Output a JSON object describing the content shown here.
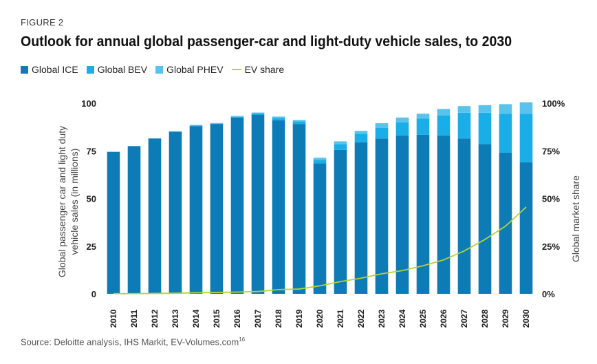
{
  "figure_label": "FIGURE 2",
  "title": "Outlook for annual global passenger-car and light-duty vehicle sales, to 2030",
  "source": "Source: Deloitte analysis, IHS Markit, EV-Volumes.com",
  "source_ref": "16",
  "colors": {
    "ice": "#0d7bb5",
    "bev": "#19aee8",
    "phev": "#59c3ec",
    "ev_share": "#b5d334"
  },
  "chart_data": {
    "type": "bar",
    "stacked": true,
    "categories": [
      "2010",
      "2011",
      "2012",
      "2013",
      "2014",
      "2015",
      "2016",
      "2017",
      "2018",
      "2019",
      "2020",
      "2021",
      "2022",
      "2023",
      "2024",
      "2025",
      "2026",
      "2027",
      "2028",
      "2029",
      "2030"
    ],
    "series": [
      {
        "name": "Global ICE",
        "values": [
          74.5,
          77.5,
          81.5,
          85,
          88,
          89,
          92.5,
          94,
          91,
          89,
          68.5,
          75.5,
          79.5,
          81.5,
          83,
          83.5,
          83,
          81.5,
          78.5,
          74,
          69
        ]
      },
      {
        "name": "Global BEV",
        "values": [
          0,
          0,
          0,
          0.1,
          0.3,
          0.3,
          0.4,
          0.6,
          1.2,
          1.5,
          1.8,
          3,
          4.5,
          5.5,
          7,
          8.5,
          10.5,
          13.5,
          16.5,
          20.5,
          25.5
        ]
      },
      {
        "name": "Global PHEV",
        "values": [
          0,
          0,
          0,
          0.2,
          0.3,
          0.3,
          0.4,
          0.5,
          0.8,
          0.7,
          1.1,
          1.5,
          1.5,
          2.5,
          2.5,
          2.5,
          3.5,
          3.5,
          4,
          5,
          6
        ]
      }
    ],
    "line_series": {
      "name": "EV share",
      "axis": "right",
      "values": [
        0.1,
        0.1,
        0.2,
        0.3,
        0.6,
        0.7,
        0.9,
        1.2,
        2.2,
        2.5,
        4.2,
        6.4,
        8.2,
        10.5,
        12.2,
        14.7,
        17.8,
        22.5,
        28.5,
        35.5,
        45.5
      ]
    },
    "ylabel": "Global passenger car and light duty vehicle sales (in millions)",
    "ylabel_right": "Global market share",
    "ylim": [
      0,
      100
    ],
    "ylim_right": [
      0,
      100
    ],
    "yticks": [
      "0",
      "25",
      "50",
      "75",
      "100"
    ],
    "yticks_right": [
      "0%",
      "25%",
      "50%",
      "75%",
      "100%"
    ],
    "grid": false,
    "legend_position": "top-left"
  }
}
